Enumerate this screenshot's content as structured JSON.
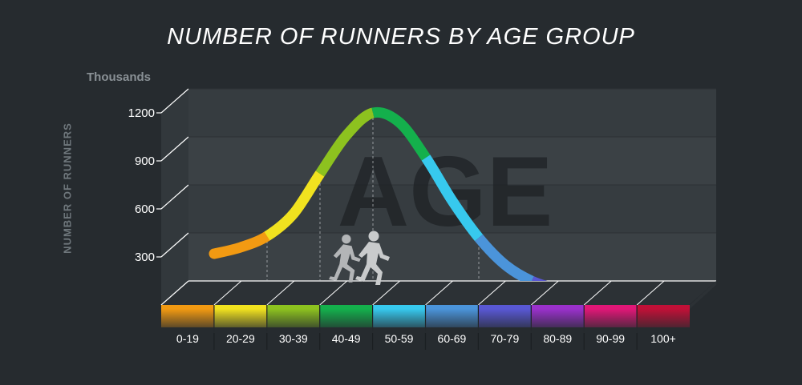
{
  "title": "NUMBER OF RUNNERS BY AGE GROUP",
  "units_label": "Thousands",
  "watermark": "AGE",
  "figure_icons": [
    "runner-icon",
    "runner-icon"
  ],
  "colors": {
    "background": "#262b2f",
    "category_colors": [
      "#f29a12",
      "#f1e21f",
      "#8dc21f",
      "#14b04c",
      "#37c9ee",
      "#4b94da",
      "#5958d4",
      "#9a31cc",
      "#e11777",
      "#c01037"
    ]
  },
  "chart_data": {
    "type": "line",
    "title": "NUMBER OF RUNNERS BY AGE GROUP",
    "ylabel": "NUMBER OF RUNNERS",
    "y_unit": "Thousands",
    "ylim": [
      0,
      1200
    ],
    "yticks": [
      300,
      600,
      900,
      1200
    ],
    "categories": [
      "0-19",
      "20-29",
      "30-39",
      "40-49",
      "50-59",
      "60-69",
      "70-79",
      "80-89",
      "90-99",
      "100+"
    ],
    "x": [
      0,
      0.5,
      1,
      1.5,
      2,
      2.5,
      3,
      3.5,
      4,
      4.5,
      5,
      5.5,
      6,
      6.5,
      7,
      7.5,
      8,
      8.5,
      9,
      9.5
    ],
    "values": [
      320,
      360,
      430,
      570,
      820,
      1060,
      1200,
      1140,
      920,
      650,
      420,
      250,
      150,
      100,
      80,
      70,
      68,
      66,
      65,
      65
    ],
    "grid": true,
    "legend": "none"
  }
}
